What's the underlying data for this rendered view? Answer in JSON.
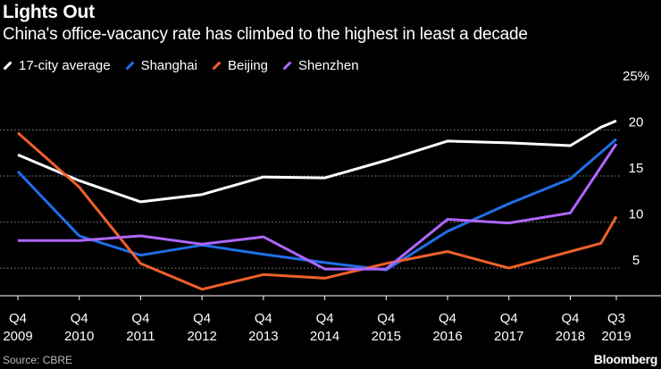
{
  "chart_data": {
    "type": "line",
    "title": "Lights Out",
    "subtitle": "China's office-vacancy rate has climbed to the highest in least a decade",
    "x_categories": [
      {
        "top": "Q4",
        "bottom": "2009"
      },
      {
        "top": "Q4",
        "bottom": "2010"
      },
      {
        "top": "Q4",
        "bottom": "2011"
      },
      {
        "top": "Q4",
        "bottom": "2012"
      },
      {
        "top": "Q4",
        "bottom": "2013"
      },
      {
        "top": "Q4",
        "bottom": "2014"
      },
      {
        "top": "Q4",
        "bottom": "2015"
      },
      {
        "top": "Q4",
        "bottom": "2016"
      },
      {
        "top": "Q4",
        "bottom": "2017"
      },
      {
        "top": "Q4",
        "bottom": "2018"
      },
      {
        "top": "Q3",
        "bottom": "2019"
      }
    ],
    "x": [
      2009.75,
      2010.75,
      2011.75,
      2012.75,
      2013.75,
      2014.75,
      2015.75,
      2016.75,
      2017.75,
      2018.75,
      2019.5
    ],
    "xlim": [
      2009.75,
      2019.5
    ],
    "ylim": [
      2,
      25
    ],
    "y_ticks": [
      5,
      10,
      15,
      20,
      25
    ],
    "y_tick_labels": [
      "5",
      "10",
      "15",
      "20",
      "25%"
    ],
    "grid_lines": [
      5,
      10,
      15,
      20
    ],
    "series": [
      {
        "name": "17-city average",
        "color": "#ffffff",
        "points": [
          [
            2009.75,
            17.3
          ],
          [
            2010.75,
            14.5
          ],
          [
            2011.75,
            12.2
          ],
          [
            2012.75,
            13.0
          ],
          [
            2013.75,
            14.9
          ],
          [
            2014.75,
            14.8
          ],
          [
            2015.75,
            16.7
          ],
          [
            2016.75,
            18.8
          ],
          [
            2017.75,
            18.6
          ],
          [
            2018.75,
            18.3
          ],
          [
            2019.25,
            20.3
          ],
          [
            2019.5,
            21.0
          ]
        ]
      },
      {
        "name": "Shanghai",
        "color": "#1f6fe8",
        "points": [
          [
            2009.75,
            15.5
          ],
          [
            2010.75,
            8.5
          ],
          [
            2011.75,
            6.4
          ],
          [
            2012.75,
            7.5
          ],
          [
            2013.75,
            6.5
          ],
          [
            2014.75,
            5.6
          ],
          [
            2015.75,
            4.8
          ],
          [
            2016.75,
            9.0
          ],
          [
            2017.75,
            12.0
          ],
          [
            2018.75,
            14.7
          ],
          [
            2019.5,
            19.0
          ]
        ]
      },
      {
        "name": "Beijing",
        "color": "#f0602b",
        "points": [
          [
            2009.75,
            19.7
          ],
          [
            2010.75,
            13.8
          ],
          [
            2011.75,
            5.5
          ],
          [
            2012.75,
            2.7
          ],
          [
            2013.75,
            4.3
          ],
          [
            2014.75,
            3.9
          ],
          [
            2015.75,
            5.5
          ],
          [
            2016.75,
            6.8
          ],
          [
            2017.75,
            5.0
          ],
          [
            2018.75,
            6.8
          ],
          [
            2019.25,
            7.7
          ],
          [
            2019.5,
            10.6
          ]
        ]
      },
      {
        "name": "Shenzhen",
        "color": "#b066ff",
        "points": [
          [
            2009.75,
            8.0
          ],
          [
            2010.75,
            8.0
          ],
          [
            2011.75,
            8.5
          ],
          [
            2012.75,
            7.6
          ],
          [
            2013.75,
            8.4
          ],
          [
            2014.75,
            4.9
          ],
          [
            2015.75,
            4.9
          ],
          [
            2016.75,
            10.3
          ],
          [
            2017.75,
            9.9
          ],
          [
            2018.75,
            11.0
          ],
          [
            2019.5,
            18.5
          ]
        ]
      }
    ],
    "legend_placement": "top-left",
    "source": "Source: CBRE",
    "brand": "Bloomberg"
  }
}
